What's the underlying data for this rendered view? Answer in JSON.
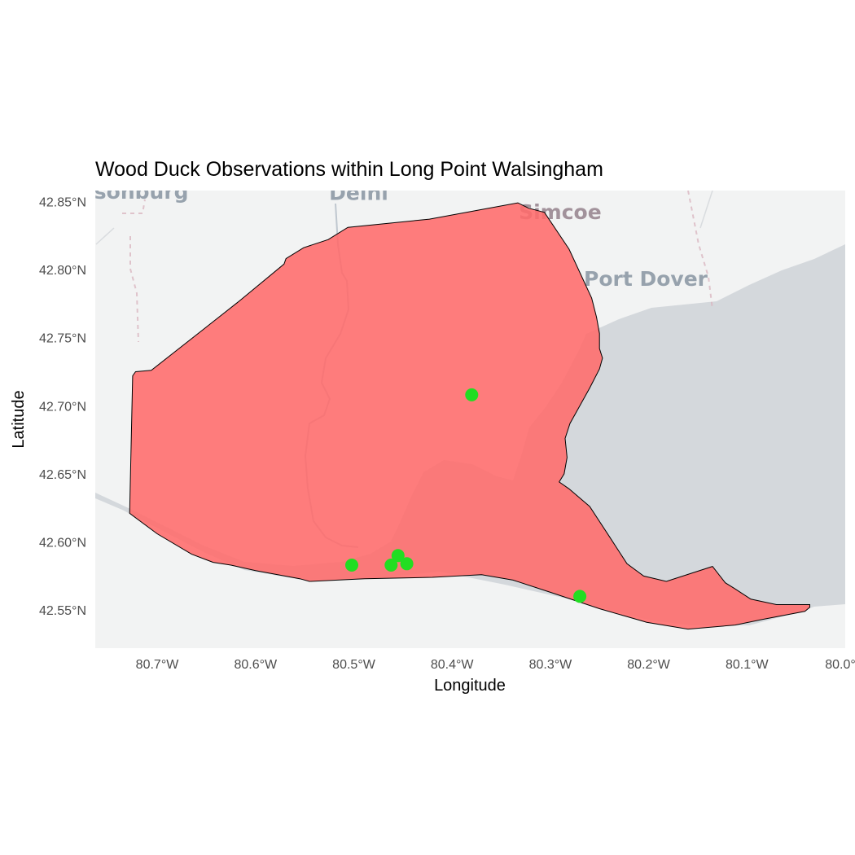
{
  "chart_data": {
    "type": "scatter",
    "title": "Wood Duck Observations within Long Point Walsingham",
    "xlabel": "Longitude",
    "ylabel": "Latitude",
    "xlim": [
      -80.763,
      -80.0
    ],
    "ylim": [
      42.522,
      42.858
    ],
    "x_ticks": [
      {
        "value": -80.7,
        "label": "80.7°W"
      },
      {
        "value": -80.6,
        "label": "80.6°W"
      },
      {
        "value": -80.5,
        "label": "80.5°W"
      },
      {
        "value": -80.4,
        "label": "80.4°W"
      },
      {
        "value": -80.3,
        "label": "80.3°W"
      },
      {
        "value": -80.2,
        "label": "80.2°W"
      },
      {
        "value": -80.1,
        "label": "80.1°W"
      },
      {
        "value": -80.0,
        "label": "80.0°"
      }
    ],
    "y_ticks": [
      {
        "value": 42.85,
        "label": "42.85°N"
      },
      {
        "value": 42.8,
        "label": "42.80°N"
      },
      {
        "value": 42.75,
        "label": "42.75°N"
      },
      {
        "value": 42.7,
        "label": "42.70°N"
      },
      {
        "value": 42.65,
        "label": "42.65°N"
      },
      {
        "value": 42.6,
        "label": "42.60°N"
      },
      {
        "value": 42.55,
        "label": "42.55°N"
      }
    ],
    "grid": false,
    "legend": "none",
    "region_fill": "#ff6b6b",
    "region_stroke": "#000000",
    "point_color": "#22dd22",
    "water_color": "#d4d8dc",
    "land_color": "#f2f3f3",
    "region_boundary": [
      [
        -80.725,
        42.722
      ],
      [
        -80.722,
        42.725
      ],
      [
        -80.706,
        42.726
      ],
      [
        -80.618,
        42.776
      ],
      [
        -80.571,
        42.804
      ],
      [
        -80.569,
        42.808
      ],
      [
        -80.551,
        42.816
      ],
      [
        -80.526,
        42.822
      ],
      [
        -80.506,
        42.831
      ],
      [
        -80.423,
        42.837
      ],
      [
        -80.333,
        42.849
      ],
      [
        -80.322,
        42.845
      ],
      [
        -80.306,
        42.842
      ],
      [
        -80.281,
        42.815
      ],
      [
        -80.258,
        42.779
      ],
      [
        -80.253,
        42.765
      ],
      [
        -80.25,
        42.753
      ],
      [
        -80.25,
        42.742
      ],
      [
        -80.247,
        42.735
      ],
      [
        -80.25,
        42.727
      ],
      [
        -80.26,
        42.713
      ],
      [
        -80.27,
        42.7
      ],
      [
        -80.28,
        42.687
      ],
      [
        -80.285,
        42.676
      ],
      [
        -80.283,
        42.662
      ],
      [
        -80.286,
        42.65
      ],
      [
        -80.291,
        42.644
      ],
      [
        -80.281,
        42.639
      ],
      [
        -80.26,
        42.626
      ],
      [
        -80.24,
        42.604
      ],
      [
        -80.222,
        42.584
      ],
      [
        -80.205,
        42.575
      ],
      [
        -80.182,
        42.571
      ],
      [
        -80.135,
        42.582
      ],
      [
        -80.122,
        42.57
      ],
      [
        -80.113,
        42.566
      ],
      [
        -80.096,
        42.558
      ],
      [
        -80.07,
        42.554
      ],
      [
        -80.045,
        42.554
      ],
      [
        -80.036,
        42.554
      ],
      [
        -80.036,
        42.552
      ],
      [
        -80.041,
        42.549
      ],
      [
        -80.085,
        42.543
      ],
      [
        -80.112,
        42.539
      ],
      [
        -80.16,
        42.536
      ],
      [
        -80.202,
        42.541
      ],
      [
        -80.25,
        42.551
      ],
      [
        -80.3,
        42.563
      ],
      [
        -80.338,
        42.572
      ],
      [
        -80.37,
        42.576
      ],
      [
        -80.42,
        42.574
      ],
      [
        -80.489,
        42.573
      ],
      [
        -80.545,
        42.571
      ],
      [
        -80.555,
        42.573
      ],
      [
        -80.6,
        42.579
      ],
      [
        -80.625,
        42.583
      ],
      [
        -80.643,
        42.585
      ],
      [
        -80.665,
        42.591
      ],
      [
        -80.7,
        42.606
      ],
      [
        -80.728,
        42.621
      ],
      [
        -80.725,
        42.722
      ]
    ],
    "points": [
      {
        "x": -80.38,
        "y": 42.708
      },
      {
        "x": -80.502,
        "y": 42.583
      },
      {
        "x": -80.462,
        "y": 42.583
      },
      {
        "x": -80.455,
        "y": 42.59
      },
      {
        "x": -80.446,
        "y": 42.584
      },
      {
        "x": -80.27,
        "y": 42.56
      }
    ],
    "basemap_labels": [
      {
        "text": "sonburg",
        "lon": -80.716,
        "lat": 42.852
      },
      {
        "text": "Delhi",
        "lon": -80.495,
        "lat": 42.851
      },
      {
        "text": "Simcoe",
        "lon": -80.29,
        "lat": 42.837
      },
      {
        "text": "Port Dover",
        "lon": -80.203,
        "lat": 42.788
      }
    ]
  }
}
